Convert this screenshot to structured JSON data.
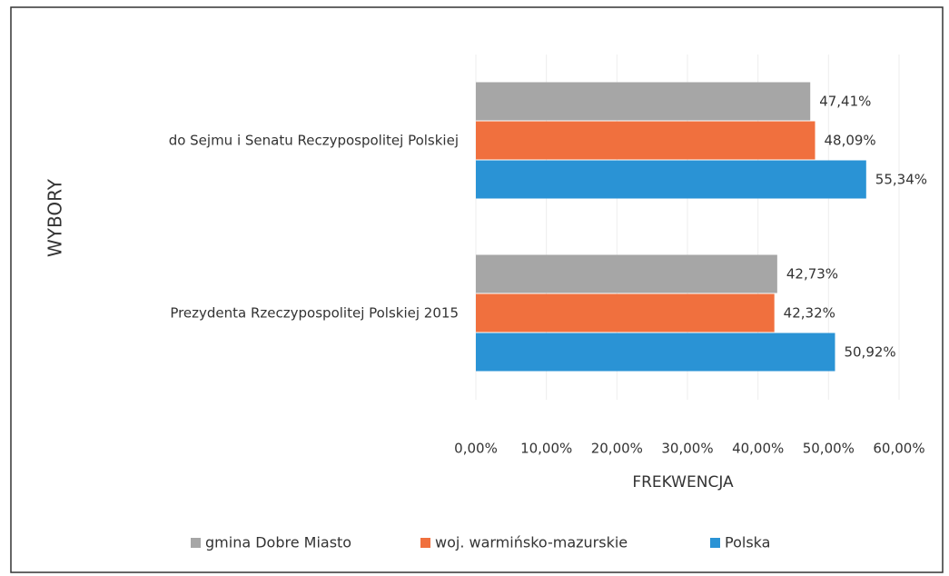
{
  "chart_data": {
    "type": "hbar",
    "categories": [
      "do Sejmu i Senatu Reczypospolitej Polskiej",
      "Prezydenta Rzeczypospolitej Polskiej 2015"
    ],
    "series": [
      {
        "name": "gmina Dobre Miasto",
        "color": "#a6a6a6",
        "values": [
          47.41,
          42.73
        ],
        "value_labels": [
          "47,41%",
          "42,73%"
        ]
      },
      {
        "name": "woj. warmińsko-mazurskie",
        "color": "#f0703e",
        "values": [
          48.09,
          42.32
        ],
        "value_labels": [
          "48,09%",
          "42,32%"
        ]
      },
      {
        "name": "Polska",
        "color": "#2a93d5",
        "values": [
          55.34,
          50.92
        ],
        "value_labels": [
          "55,34%",
          "50,92%"
        ]
      }
    ],
    "xlabel": "FREKWENCJA",
    "ylabel": "WYBORY",
    "xlim": [
      0,
      60
    ],
    "xticks": [
      {
        "value": 0,
        "label": "0,00%"
      },
      {
        "value": 10,
        "label": "10,00%"
      },
      {
        "value": 20,
        "label": "20,00%"
      },
      {
        "value": 30,
        "label": "30,00%"
      },
      {
        "value": 40,
        "label": "40,00%"
      },
      {
        "value": 50,
        "label": "50,00%"
      },
      {
        "value": 60,
        "label": "60,00%"
      }
    ],
    "grid": true,
    "legend": "bottom"
  }
}
